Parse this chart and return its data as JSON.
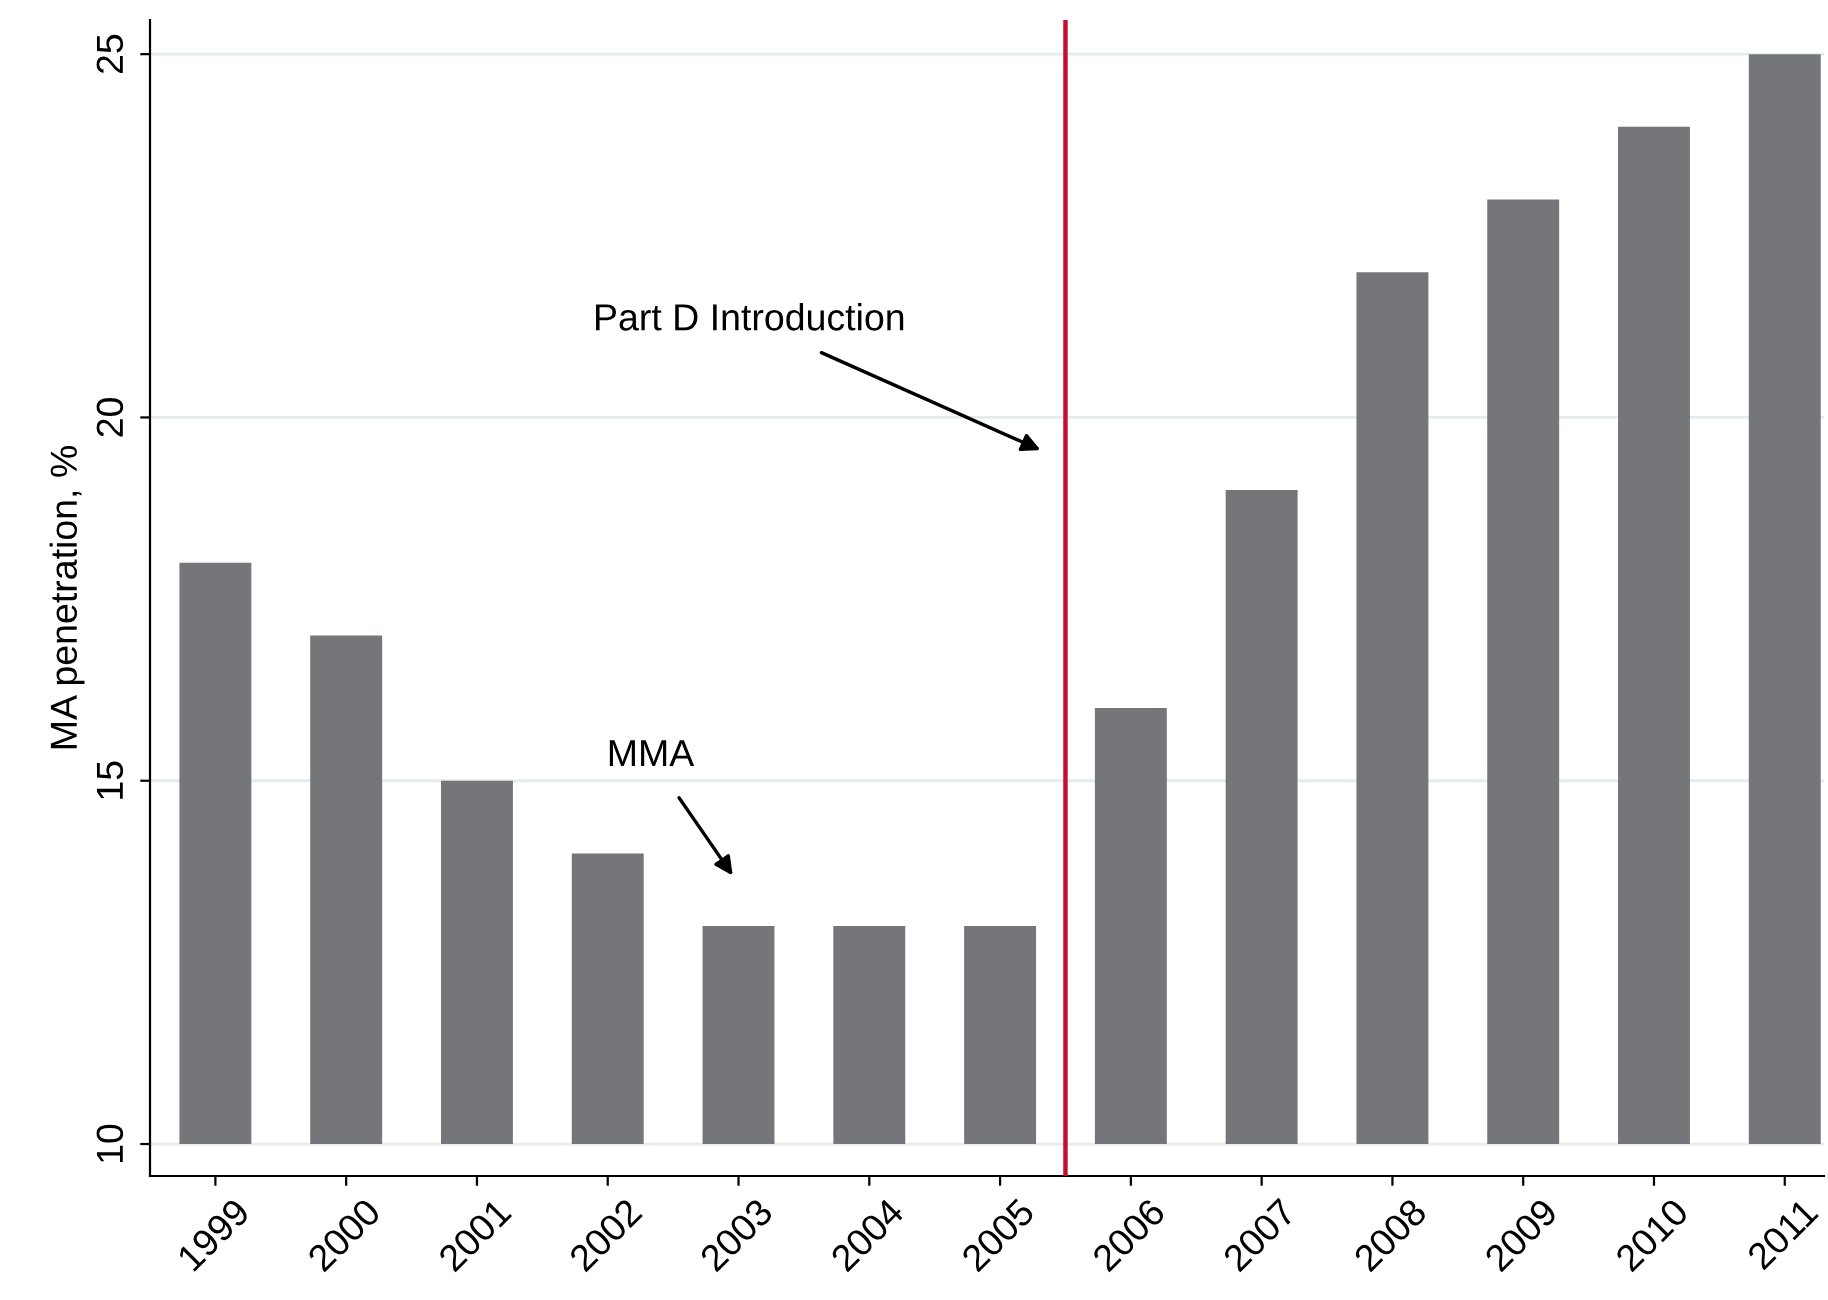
{
  "chart_data": {
    "type": "bar",
    "ylabel": "MA penetration, %",
    "x": [
      1999,
      2000,
      2001,
      2002,
      2003,
      2004,
      2005,
      2006,
      2007,
      2008,
      2009,
      2010,
      2011
    ],
    "values": [
      8,
      7,
      5,
      4,
      3,
      3,
      3,
      6,
      9,
      12,
      13,
      14,
      15
    ],
    "base": [
      10,
      10,
      10,
      10,
      10,
      10,
      10,
      10,
      10,
      10,
      10,
      10,
      10
    ],
    "color": "#75767a",
    "xlim": [
      1998.5,
      2011.3
    ],
    "xticks": [
      1999,
      2000,
      2001,
      2002,
      2003,
      2004,
      2005,
      2006,
      2007,
      2008,
      2009,
      2010,
      2011
    ],
    "ylim": [
      9.56,
      25.47
    ],
    "yticks": [
      10,
      15,
      20,
      25
    ],
    "grid": "y",
    "ref_lines": [
      {
        "axis": "x",
        "value": 2005.5,
        "color": "#c00f2f"
      }
    ],
    "annotations": [
      "Part D Introduction",
      "MMA"
    ]
  }
}
